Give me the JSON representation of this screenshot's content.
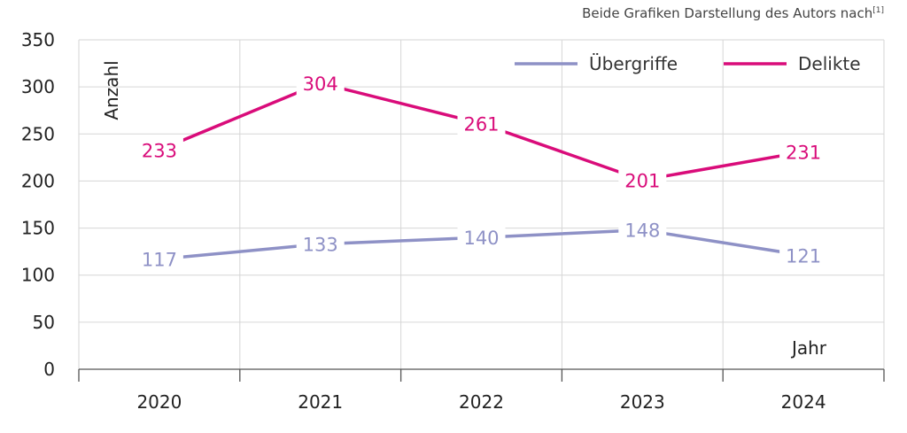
{
  "source_note": "Beide Grafiken Darstellung des Autors nach",
  "source_ref": "[1]",
  "chart_data": {
    "type": "line",
    "categories": [
      "2020",
      "2021",
      "2022",
      "2023",
      "2024"
    ],
    "series": [
      {
        "name": "Übergriffe",
        "color": "#8E91C6",
        "values": [
          117,
          133,
          140,
          148,
          121
        ]
      },
      {
        "name": "Delikte",
        "color": "#D90C7A",
        "values": [
          233,
          304,
          261,
          201,
          231
        ]
      }
    ],
    "ylabel": "Anzahl",
    "xlabel": "Jahr",
    "ylim": [
      0,
      350
    ],
    "yticks": [
      "0",
      "50",
      "100",
      "150",
      "200",
      "250",
      "300",
      "350"
    ],
    "grid": true,
    "legend_position": "top-right"
  }
}
